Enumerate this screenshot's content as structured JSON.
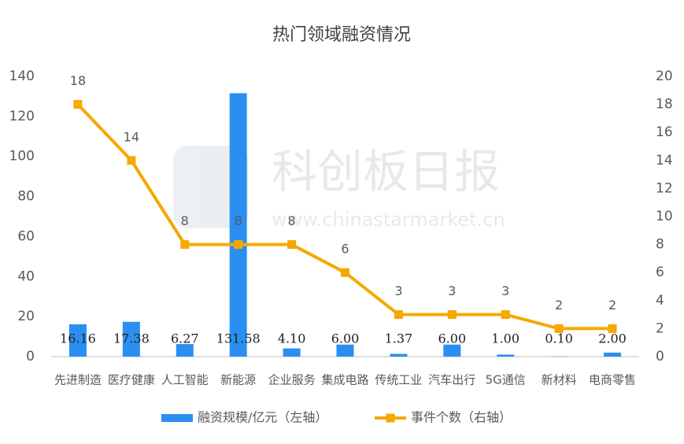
{
  "chart_data": {
    "type": "bar",
    "title": "热门领域融资情况",
    "watermark": {
      "name": "科创板日报",
      "url": "www.chinastarmarket.cn"
    },
    "categories": [
      "先进制造",
      "医疗健康",
      "人工智能",
      "新能源",
      "企业服务",
      "集成电路",
      "传统工业",
      "汽车出行",
      "5G通信",
      "新材料",
      "电商零售"
    ],
    "series": [
      {
        "name": "融资规模/亿元（左轴）",
        "type": "bar",
        "axis": "y",
        "color": "#2a8ff0",
        "values": [
          16.16,
          17.38,
          6.27,
          131.58,
          4.1,
          6,
          1.37,
          6,
          1,
          0.1,
          2
        ],
        "value_labels": [
          "16.16",
          "17.38",
          "6.27",
          "131.58",
          "4.10",
          "6.00",
          "1.37",
          "6.00",
          "1.00",
          "0.10",
          "2.00"
        ]
      },
      {
        "name": "事件个数（右轴）",
        "type": "line",
        "axis": "y2",
        "color": "#f5a800",
        "values": [
          18,
          14,
          8,
          8,
          8,
          6,
          3,
          3,
          3,
          2,
          2
        ]
      }
    ],
    "ylim": [
      0,
      140
    ],
    "yticks": [
      0,
      20,
      40,
      60,
      80,
      100,
      120,
      140
    ],
    "y2lim": [
      0,
      20
    ],
    "y2ticks": [
      0,
      2,
      4,
      6,
      8,
      10,
      12,
      14,
      16,
      18,
      20
    ],
    "grid": false,
    "legend": "bottom"
  }
}
